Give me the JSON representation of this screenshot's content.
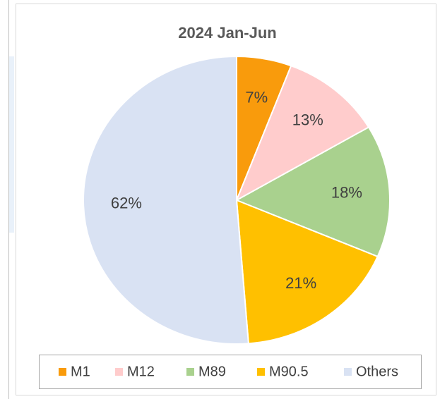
{
  "chart_data": {
    "type": "pie",
    "title": "2024 Jan-Jun",
    "categories": [
      "M1",
      "M12",
      "M89",
      "M90.5",
      "Others"
    ],
    "values": [
      7,
      13,
      18,
      21,
      62
    ],
    "value_labels": [
      "7%",
      "13%",
      "18%",
      "21%",
      "62%"
    ],
    "colors": [
      "#f99b0c",
      "#ffcccc",
      "#a9d18e",
      "#ffc000",
      "#d9e2f3"
    ],
    "legend": "bottom"
  }
}
